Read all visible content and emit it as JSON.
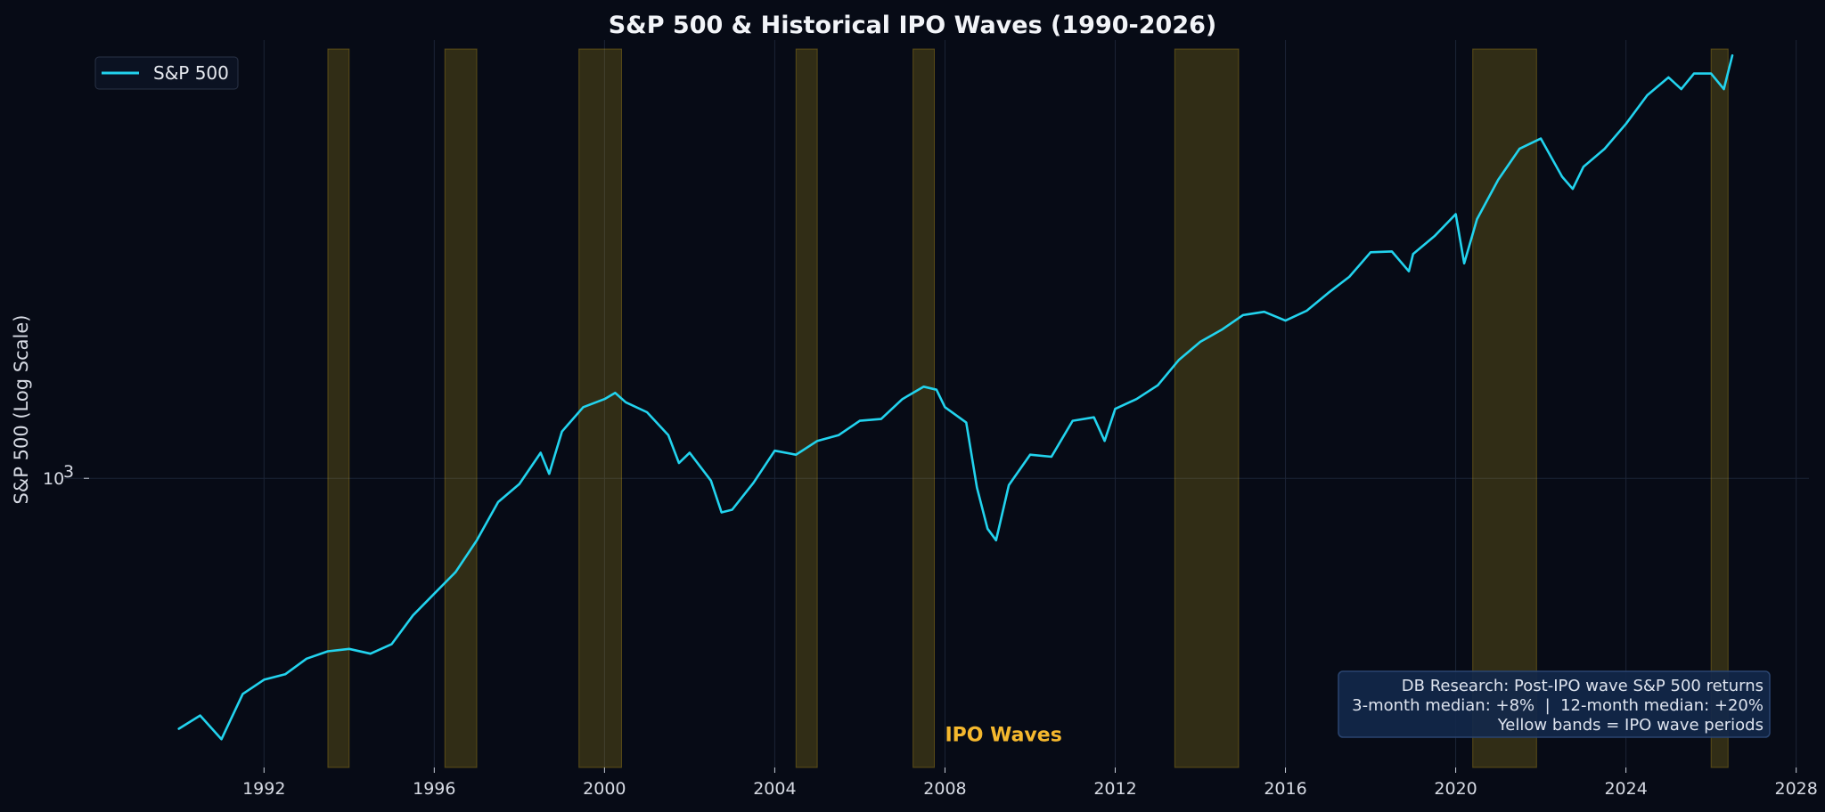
{
  "chart_data": {
    "type": "line",
    "title": "S&P 500 & Historical IPO Waves (1990-2026)",
    "xlabel": "",
    "ylabel": "S&P 500 (Log Scale)",
    "y_scale": "log",
    "xlim": [
      1988.1,
      2028.3
    ],
    "ylim": [
      278,
      6690
    ],
    "x_ticks": [
      1992,
      1996,
      2000,
      2004,
      2008,
      2012,
      2016,
      2020,
      2024,
      2028
    ],
    "x_tick_labels": [
      "1992",
      "1996",
      "2000",
      "2004",
      "2008",
      "2012",
      "2016",
      "2020",
      "2024",
      "2028"
    ],
    "y_ticks": [
      1000
    ],
    "y_tick_labels": [
      "10",
      "3"
    ],
    "grid": true,
    "legend_position": "top-left",
    "series": [
      {
        "name": "S&P 500",
        "color": "#22d3ee",
        "x": [
          1990.0,
          1990.5,
          1991.0,
          1991.5,
          1992.0,
          1992.5,
          1993.0,
          1993.5,
          1994.0,
          1994.5,
          1995.0,
          1995.5,
          1996.0,
          1996.5,
          1997.0,
          1997.5,
          1998.0,
          1998.5,
          1998.7,
          1999.0,
          1999.5,
          2000.0,
          2000.25,
          2000.5,
          2001.0,
          2001.5,
          2001.75,
          2002.0,
          2002.5,
          2002.75,
          2003.0,
          2003.5,
          2004.0,
          2004.5,
          2005.0,
          2005.5,
          2006.0,
          2006.5,
          2007.0,
          2007.5,
          2007.8,
          2008.0,
          2008.5,
          2008.75,
          2009.0,
          2009.2,
          2009.5,
          2010.0,
          2010.5,
          2011.0,
          2011.5,
          2011.75,
          2012.0,
          2012.5,
          2013.0,
          2013.5,
          2014.0,
          2014.5,
          2015.0,
          2015.5,
          2016.0,
          2016.5,
          2017.0,
          2017.5,
          2018.0,
          2018.5,
          2018.9,
          2019.0,
          2019.5,
          2020.0,
          2020.2,
          2020.5,
          2021.0,
          2021.5,
          2022.0,
          2022.5,
          2022.75,
          2023.0,
          2023.5,
          2024.0,
          2024.5,
          2025.0,
          2025.3,
          2025.6,
          2026.0,
          2026.3,
          2026.5
        ],
        "values": [
          330,
          350,
          315,
          385,
          410,
          420,
          450,
          465,
          470,
          460,
          480,
          545,
          600,
          660,
          760,
          900,
          975,
          1120,
          1020,
          1230,
          1370,
          1420,
          1460,
          1400,
          1340,
          1210,
          1070,
          1120,
          990,
          860,
          870,
          980,
          1130,
          1110,
          1180,
          1210,
          1290,
          1300,
          1420,
          1500,
          1480,
          1370,
          1280,
          960,
          800,
          760,
          970,
          1110,
          1100,
          1290,
          1310,
          1180,
          1360,
          1420,
          1510,
          1690,
          1830,
          1930,
          2060,
          2090,
          2010,
          2100,
          2270,
          2440,
          2720,
          2730,
          2500,
          2700,
          2920,
          3220,
          2590,
          3150,
          3750,
          4300,
          4500,
          3800,
          3600,
          3970,
          4300,
          4800,
          5450,
          5900,
          5600,
          6000,
          6000,
          5600,
          6500
        ]
      }
    ],
    "ipo_waves": [
      {
        "start": 1993.5,
        "end": 1994.0
      },
      {
        "start": 1996.25,
        "end": 1997.0
      },
      {
        "start": 1999.4,
        "end": 2000.4
      },
      {
        "start": 2004.5,
        "end": 2005.0
      },
      {
        "start": 2007.25,
        "end": 2007.75
      },
      {
        "start": 2013.4,
        "end": 2014.9
      },
      {
        "start": 2020.4,
        "end": 2021.9
      },
      {
        "start": 2026.0,
        "end": 2026.4
      }
    ],
    "band_color": "#f5c518",
    "wave_label": "IPO Waves",
    "wave_label_color": "#f5b82e",
    "wave_label_at": {
      "x": 2008.0,
      "y": 322
    },
    "annotation_lines": [
      "DB Research: Post-IPO wave S&P 500 returns",
      "3-month median: +8%  |  12-month median: +20%",
      "Yellow bands = IPO wave periods"
    ]
  }
}
